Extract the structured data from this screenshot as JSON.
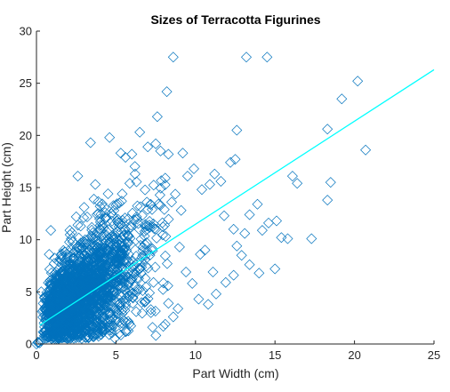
{
  "chart_data": {
    "type": "scatter",
    "title": "Sizes of Terracotta Figurines",
    "xlabel": "Part Width (cm)",
    "ylabel": "Part Height (cm)",
    "xlim": [
      0,
      25
    ],
    "ylim": [
      0,
      30
    ],
    "xticks": [
      "0",
      "5",
      "10",
      "15",
      "20",
      "25"
    ],
    "yticks": [
      "0",
      "5",
      "10",
      "15",
      "20",
      "25",
      "30"
    ],
    "grid": false,
    "marker": "diamond",
    "colors": {
      "points": "#0072BD",
      "fit_line": "#00FFFF",
      "axes": "#262626"
    },
    "series": [
      {
        "kind": "points",
        "points": [
          [
            0.1,
            0.1
          ],
          [
            0.1,
            0.2
          ],
          [
            0.0,
            0.0
          ],
          [
            0.2,
            0.1
          ],
          [
            0.3,
            0.3
          ],
          [
            0.3,
            5.0
          ],
          [
            0.8,
            8.6
          ],
          [
            0.9,
            10.9
          ],
          [
            1.8,
            8.8
          ],
          [
            2.6,
            16.1
          ],
          [
            2.5,
            12.2
          ],
          [
            2.6,
            11.4
          ],
          [
            3.4,
            19.3
          ],
          [
            3.7,
            15.3
          ],
          [
            4.0,
            13.2
          ],
          [
            4.6,
            19.8
          ],
          [
            5.3,
            18.3
          ],
          [
            5.6,
            17.9
          ],
          [
            6.0,
            18.2
          ],
          [
            6.2,
            16.3
          ],
          [
            6.5,
            20.3
          ],
          [
            7.0,
            18.9
          ],
          [
            7.5,
            19.2
          ],
          [
            7.8,
            18.5
          ],
          [
            8.1,
            15.9
          ],
          [
            8.3,
            18.2
          ],
          [
            7.6,
            21.8
          ],
          [
            8.2,
            24.2
          ],
          [
            8.6,
            27.5
          ],
          [
            9.2,
            18.3
          ],
          [
            9.5,
            16.1
          ],
          [
            9.9,
            16.8
          ],
          [
            10.4,
            14.8
          ],
          [
            10.9,
            15.3
          ],
          [
            11.2,
            16.3
          ],
          [
            11.6,
            15.6
          ],
          [
            12.2,
            17.4
          ],
          [
            12.5,
            17.7
          ],
          [
            12.6,
            20.5
          ],
          [
            13.2,
            27.5
          ],
          [
            14.5,
            27.5
          ],
          [
            11.8,
            12.3
          ],
          [
            12.4,
            11.0
          ],
          [
            13.4,
            12.4
          ],
          [
            13.9,
            13.4
          ],
          [
            14.6,
            11.6
          ],
          [
            15.1,
            11.8
          ],
          [
            15.8,
            10.1
          ],
          [
            15.4,
            10.2
          ],
          [
            14.2,
            10.9
          ],
          [
            13.1,
            10.6
          ],
          [
            12.6,
            9.4
          ],
          [
            12.9,
            8.5
          ],
          [
            13.4,
            7.6
          ],
          [
            14.0,
            6.8
          ],
          [
            15.0,
            7.2
          ],
          [
            12.4,
            6.6
          ],
          [
            11.9,
            5.9
          ],
          [
            11.1,
            6.9
          ],
          [
            10.6,
            9.0
          ],
          [
            10.3,
            8.6
          ],
          [
            16.1,
            16.1
          ],
          [
            16.4,
            15.4
          ],
          [
            17.3,
            10.1
          ],
          [
            18.3,
            20.6
          ],
          [
            18.5,
            15.5
          ],
          [
            18.3,
            13.8
          ],
          [
            19.2,
            23.5
          ],
          [
            20.2,
            25.2
          ],
          [
            20.7,
            18.6
          ],
          [
            9.4,
            6.9
          ],
          [
            9.8,
            5.8
          ],
          [
            10.2,
            4.3
          ],
          [
            10.8,
            3.8
          ],
          [
            11.3,
            4.8
          ],
          [
            8.9,
            3.4
          ],
          [
            8.6,
            2.6
          ],
          [
            8.1,
            1.9
          ],
          [
            7.3,
            1.6
          ],
          [
            5.6,
            1.2
          ],
          [
            4.1,
            1.3
          ],
          [
            3.2,
            1.4
          ],
          [
            2.2,
            0.6
          ],
          [
            1.6,
            0.9
          ],
          [
            1.1,
            1.1
          ],
          [
            7.0,
            12.9
          ],
          [
            7.8,
            13.3
          ],
          [
            8.5,
            13.6
          ],
          [
            9.1,
            12.8
          ],
          [
            6.3,
            12.2
          ],
          [
            5.2,
            13.5
          ],
          [
            4.5,
            14.4
          ],
          [
            3.9,
            12.5
          ],
          [
            3.0,
            13.1
          ],
          [
            2.1,
            10.9
          ],
          [
            8.3,
            3.9
          ],
          [
            9.0,
            9.3
          ],
          [
            6.8,
            4.0
          ],
          [
            7.2,
            3.0
          ],
          [
            5.0,
            2.2
          ]
        ]
      },
      {
        "kind": "dense_cloud",
        "n": 2200,
        "x_range": [
          0.2,
          9.0
        ],
        "y_trend": "y = 2.0 + 0.97x",
        "y_spread": 2.5
      },
      {
        "kind": "fit_line",
        "x": [
          0.2,
          25
        ],
        "y": [
          1.8,
          26.3
        ]
      }
    ]
  }
}
